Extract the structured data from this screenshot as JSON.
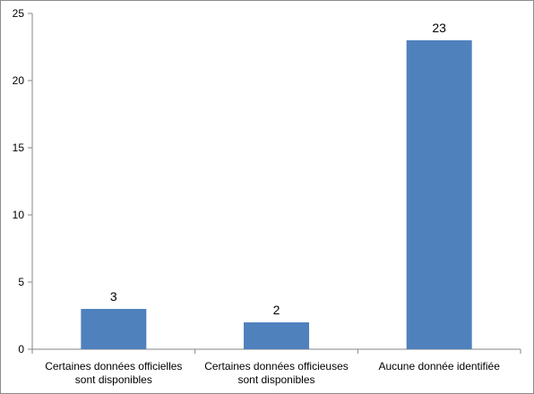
{
  "chart_data": {
    "type": "bar",
    "categories": [
      [
        "Certaines données officielles",
        "sont disponibles"
      ],
      [
        "Certaines données officieuses",
        "sont disponibles"
      ],
      [
        "Aucune donnée identifiée"
      ]
    ],
    "values": [
      3,
      2,
      23
    ],
    "data_labels": [
      "3",
      "2",
      "23"
    ],
    "yticks": [
      "0",
      "5",
      "10",
      "15",
      "20",
      "25"
    ],
    "ylim": [
      0,
      25
    ],
    "grid": false,
    "legend": "none",
    "bar_color": "#4f81bd",
    "title": "",
    "xlabel": "",
    "ylabel": ""
  }
}
